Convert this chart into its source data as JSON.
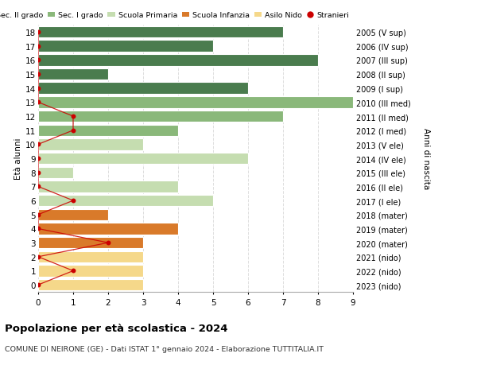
{
  "ages": [
    18,
    17,
    16,
    15,
    14,
    13,
    12,
    11,
    10,
    9,
    8,
    7,
    6,
    5,
    4,
    3,
    2,
    1,
    0
  ],
  "right_labels": [
    "2005 (V sup)",
    "2006 (IV sup)",
    "2007 (III sup)",
    "2008 (II sup)",
    "2009 (I sup)",
    "2010 (III med)",
    "2011 (II med)",
    "2012 (I med)",
    "2013 (V ele)",
    "2014 (IV ele)",
    "2015 (III ele)",
    "2016 (II ele)",
    "2017 (I ele)",
    "2018 (mater)",
    "2019 (mater)",
    "2020 (mater)",
    "2021 (nido)",
    "2022 (nido)",
    "2023 (nido)"
  ],
  "bar_values": [
    7,
    5,
    8,
    2,
    6,
    9,
    7,
    4,
    3,
    6,
    1,
    4,
    5,
    2,
    4,
    3,
    3,
    3,
    3
  ],
  "bar_colors": [
    "#4a7c4e",
    "#4a7c4e",
    "#4a7c4e",
    "#4a7c4e",
    "#4a7c4e",
    "#8ab87a",
    "#8ab87a",
    "#8ab87a",
    "#c5ddb0",
    "#c5ddb0",
    "#c5ddb0",
    "#c5ddb0",
    "#c5ddb0",
    "#d97a2a",
    "#d97a2a",
    "#d97a2a",
    "#f5d88a",
    "#f5d88a",
    "#f5d88a"
  ],
  "stranieri_x": [
    0,
    0,
    0,
    0,
    0,
    0,
    1,
    1,
    0,
    0,
    0,
    0,
    1,
    0,
    0,
    2,
    0,
    1,
    0
  ],
  "title": "Popolazione per età scolastica - 2024",
  "subtitle": "COMUNE DI NEIRONE (GE) - Dati ISTAT 1° gennaio 2024 - Elaborazione TUTTITALIA.IT",
  "ylabel_left": "Età alunni",
  "ylabel_right": "Anni di nascita",
  "xlim": [
    0,
    9
  ],
  "ylim": [
    -0.5,
    18.5
  ],
  "legend_labels": [
    "Sec. II grado",
    "Sec. I grado",
    "Scuola Primaria",
    "Scuola Infanzia",
    "Asilo Nido",
    "Stranieri"
  ],
  "legend_colors": [
    "#4a7c4e",
    "#8ab87a",
    "#c5ddb0",
    "#d97a2a",
    "#f5d88a",
    "#cc0000"
  ],
  "color_stranieri": "#cc0000",
  "grid_color": "#dddddd",
  "bg_color": "#ffffff"
}
